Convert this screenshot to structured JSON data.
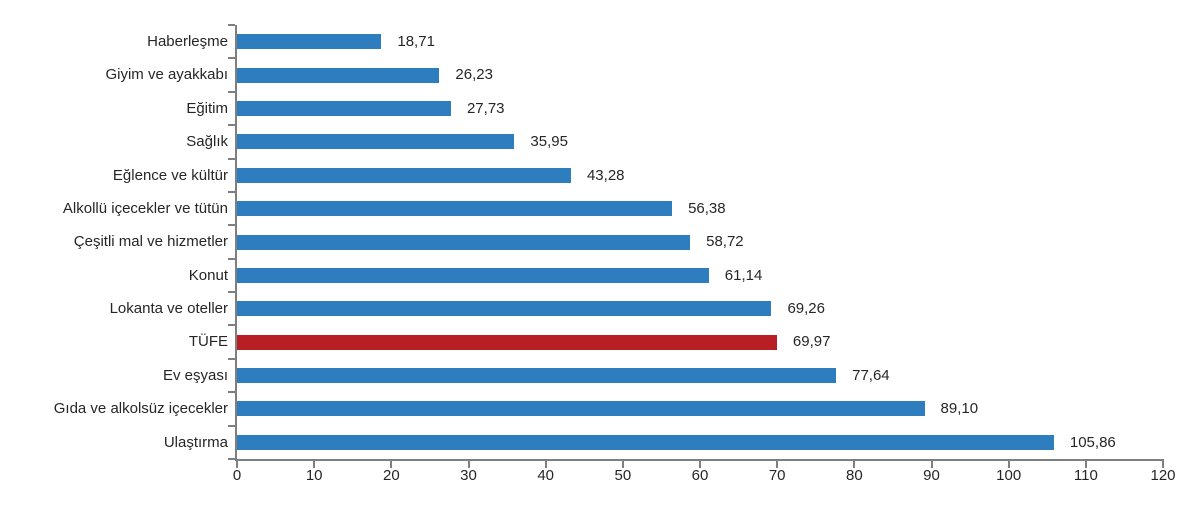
{
  "chart_data": {
    "type": "bar",
    "orientation": "horizontal",
    "title": "",
    "xlabel": "",
    "ylabel": "",
    "xlim": [
      0,
      120
    ],
    "x_ticks": [
      "0",
      "10",
      "20",
      "30",
      "40",
      "50",
      "60",
      "70",
      "80",
      "90",
      "100",
      "110",
      "120"
    ],
    "grid": false,
    "legend_position": "none",
    "categories": [
      "Haberleşme",
      "Giyim ve ayakkabı",
      "Eğitim",
      "Sağlık",
      "Eğlence ve kültür",
      "Alkollü içecekler ve tütün",
      "Çeşitli mal ve hizmetler",
      "Konut",
      "Lokanta ve oteller",
      "TÜFE",
      "Ev eşyası",
      "Gıda ve alkolsüz içecekler",
      "Ulaştırma"
    ],
    "values": [
      18.71,
      26.23,
      27.73,
      35.95,
      43.28,
      56.38,
      58.72,
      61.14,
      69.26,
      69.97,
      77.64,
      89.1,
      105.86
    ],
    "value_labels": [
      "18,71",
      "26,23",
      "27,73",
      "35,95",
      "43,28",
      "56,38",
      "58,72",
      "61,14",
      "69,26",
      "69,97",
      "77,64",
      "89,10",
      "105,86"
    ],
    "highlight_category": "TÜFE",
    "highlight_index": 9,
    "colors": {
      "bar": "#2e7ebf",
      "highlight": "#b81f24",
      "axis": "#7f7f7f",
      "text": "#262626"
    }
  }
}
